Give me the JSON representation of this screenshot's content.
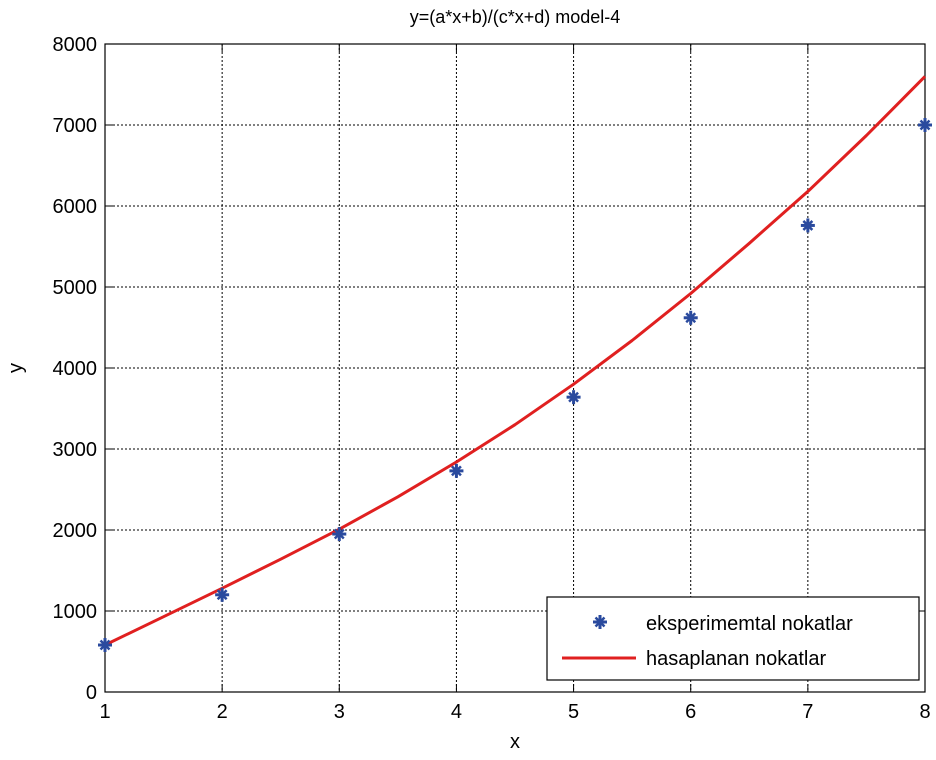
{
  "chart_data": {
    "type": "line",
    "title": "y=(a*x+b)/(c*x+d) model-4",
    "xlabel": "x",
    "ylabel": "y",
    "xlim": [
      1,
      8
    ],
    "ylim": [
      0,
      8000
    ],
    "xticks": [
      1,
      2,
      3,
      4,
      5,
      6,
      7,
      8
    ],
    "yticks": [
      0,
      1000,
      2000,
      3000,
      4000,
      5000,
      6000,
      7000,
      8000
    ],
    "grid": true,
    "legend_position": "bottom-right",
    "series": [
      {
        "name": "eksperimemtal nokatlar",
        "kind": "scatter",
        "marker": "star",
        "color": "#2a4a9e",
        "x": [
          1,
          2,
          3,
          4,
          5,
          6,
          7,
          8
        ],
        "y": [
          580,
          1200,
          1950,
          2730,
          3640,
          4620,
          5760,
          7000
        ]
      },
      {
        "name": "hasaplanan nokatlar",
        "kind": "line",
        "color": "#e02020",
        "x": [
          1,
          1.5,
          2,
          2.5,
          3,
          3.5,
          4,
          4.5,
          5,
          5.5,
          6,
          6.5,
          7,
          7.5,
          8
        ],
        "y": [
          580,
          930,
          1280,
          1640,
          2010,
          2410,
          2840,
          3300,
          3800,
          4340,
          4920,
          5540,
          6180,
          6870,
          7600
        ]
      }
    ]
  }
}
